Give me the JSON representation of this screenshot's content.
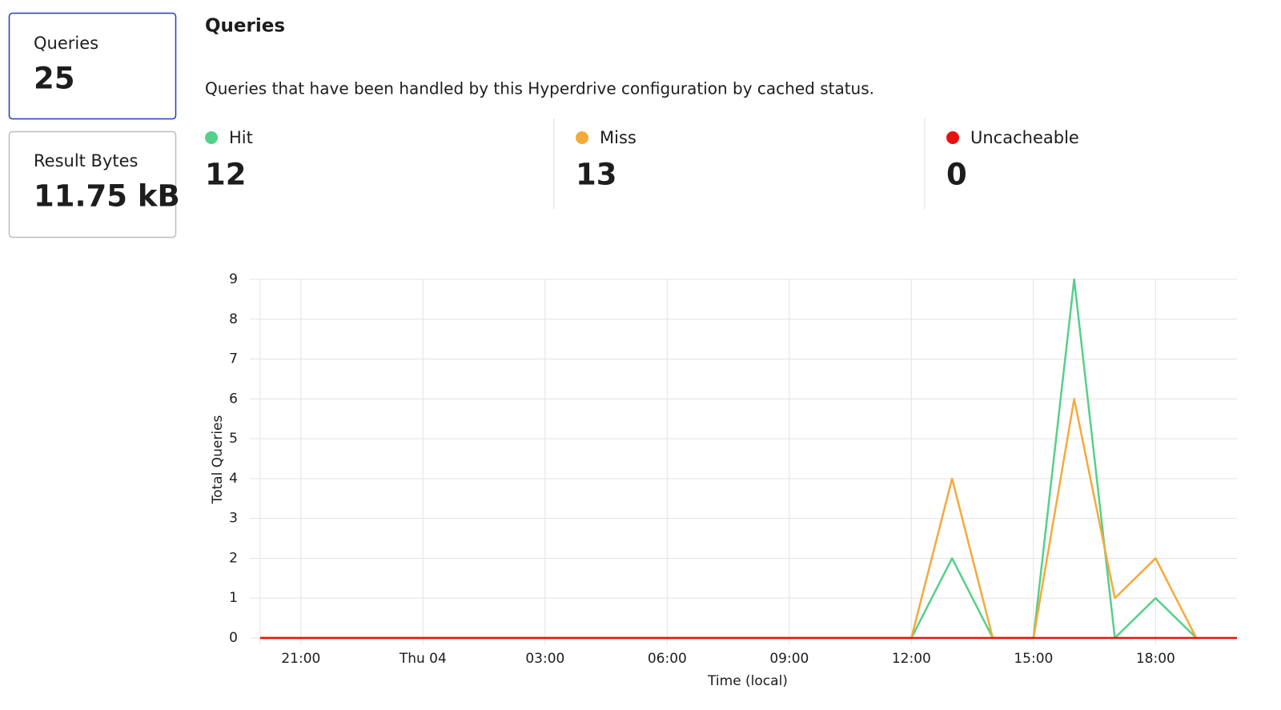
{
  "cards": [
    {
      "label": "Queries",
      "value": "25"
    },
    {
      "label": "Result Bytes",
      "value": "11.75 kB"
    }
  ],
  "section": {
    "title": "Queries",
    "description": "Queries that have been handled by this Hyperdrive configuration by cached status."
  },
  "status_totals": [
    12,
    13,
    0
  ],
  "chart_data": {
    "type": "line",
    "y_label": "Total Queries",
    "x_label": "Time (local)",
    "x": [
      0,
      1,
      2,
      3,
      4,
      5,
      6,
      7,
      8,
      9,
      10,
      11,
      12,
      13,
      14,
      15,
      16,
      17,
      18,
      19,
      20,
      21,
      22,
      23,
      24
    ],
    "series": [
      {
        "name": "Hit",
        "color": "#55d08a",
        "values": [
          0,
          0,
          0,
          0,
          0,
          0,
          0,
          0,
          0,
          0,
          0,
          0,
          0,
          0,
          0,
          0,
          0,
          2,
          0,
          0,
          9,
          0,
          1,
          0,
          null
        ]
      },
      {
        "name": "Miss",
        "color": "#f6a93b",
        "values": [
          0,
          0,
          0,
          0,
          0,
          0,
          0,
          0,
          0,
          0,
          0,
          0,
          0,
          0,
          0,
          0,
          0,
          4,
          0,
          0,
          6,
          1,
          2,
          0,
          null
        ]
      },
      {
        "name": "Uncacheable",
        "color": "#e8120c",
        "values": [
          0,
          0,
          0,
          0,
          0,
          0,
          0,
          0,
          0,
          0,
          0,
          0,
          0,
          0,
          0,
          0,
          0,
          0,
          0,
          0,
          0,
          0,
          0,
          0,
          0
        ]
      }
    ],
    "xlim": [
      0,
      24
    ],
    "xticks": [
      {
        "value": 1,
        "label": "21:00"
      },
      {
        "value": 4,
        "label": "Thu 04"
      },
      {
        "value": 7,
        "label": "03:00"
      },
      {
        "value": 10,
        "label": "06:00"
      },
      {
        "value": 13,
        "label": "09:00"
      },
      {
        "value": 16,
        "label": "12:00"
      },
      {
        "value": 19,
        "label": "15:00"
      },
      {
        "value": 22,
        "label": "18:00"
      }
    ],
    "ylim": [
      0,
      9
    ],
    "yticks": [
      0,
      1,
      2,
      3,
      4,
      5,
      6,
      7,
      8,
      9
    ],
    "grid": true
  }
}
